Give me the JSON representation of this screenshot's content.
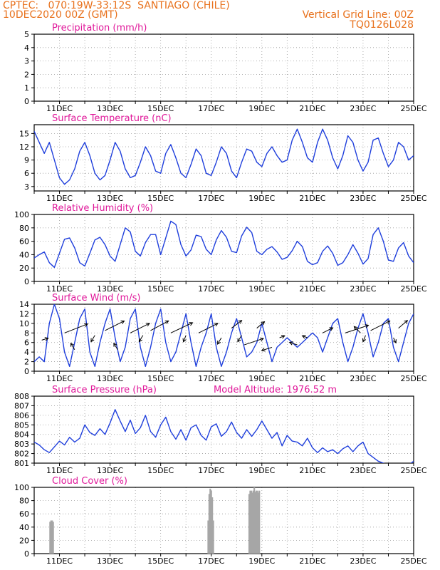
{
  "header": {
    "line1_left": "CPTEC:   070:19W-33:12S  SANTIAGO (CHILE)",
    "line2_left": "10DEC2020 00Z (GMT)",
    "line1_right": "Vertical Grid Line: 00Z",
    "line2_right": "TQ0126L028"
  },
  "colors": {
    "header": "#e8711c",
    "title": "#e0189a",
    "line": "#1f3fdc",
    "bars": "#a6a6a6",
    "arrows": "#000000",
    "grid": "#9a9a9a"
  },
  "chart_data": [
    {
      "type": "line",
      "title": "Precipitation (mm/h)",
      "ylim": [
        0,
        5
      ],
      "yticks": [
        0,
        1,
        2,
        3,
        4,
        5
      ],
      "x_range_days": [
        10,
        25
      ],
      "xticks": [
        "11DEC",
        "13DEC",
        "15DEC",
        "17DEC",
        "19DEC",
        "21DEC",
        "23DEC",
        "25DEC"
      ],
      "grid": true,
      "series": [
        {
          "x": [],
          "values": []
        }
      ]
    },
    {
      "type": "line",
      "title": "Surface Temperature (nC)",
      "ylim": [
        2,
        17
      ],
      "yticks": [
        3,
        6,
        9,
        12,
        15
      ],
      "x_range_days": [
        10,
        25
      ],
      "xticks": [
        "11DEC",
        "13DEC",
        "15DEC",
        "17DEC",
        "19DEC",
        "21DEC",
        "23DEC",
        "25DEC"
      ],
      "grid": true,
      "series": [
        {
          "x": [
            10.0,
            10.2,
            10.4,
            10.6,
            10.8,
            11.0,
            11.2,
            11.4,
            11.6,
            11.8,
            12.0,
            12.2,
            12.4,
            12.6,
            12.8,
            13.0,
            13.2,
            13.4,
            13.6,
            13.8,
            14.0,
            14.2,
            14.4,
            14.6,
            14.8,
            15.0,
            15.2,
            15.4,
            15.6,
            15.8,
            16.0,
            16.2,
            16.4,
            16.6,
            16.8,
            17.0,
            17.2,
            17.4,
            17.6,
            17.8,
            18.0,
            18.2,
            18.4,
            18.6,
            18.8,
            19.0,
            19.2,
            19.4,
            19.6,
            19.8,
            20.0,
            20.2,
            20.4,
            20.6,
            20.8,
            21.0,
            21.2,
            21.4,
            21.6,
            21.8,
            22.0,
            22.2,
            22.4,
            22.6,
            22.8,
            23.0,
            23.2,
            23.4,
            23.6,
            23.8,
            24.0,
            24.2,
            24.4,
            24.6,
            24.8,
            25.0
          ],
          "values": [
            15.5,
            13.0,
            10.5,
            13.0,
            9.0,
            5.0,
            3.5,
            4.5,
            7.0,
            11.0,
            13.0,
            10.0,
            6.0,
            4.5,
            5.5,
            9.0,
            13.0,
            11.0,
            7.0,
            5.0,
            5.5,
            8.5,
            12.0,
            10.0,
            6.5,
            6.0,
            10.5,
            12.5,
            9.5,
            6.0,
            5.0,
            8.0,
            11.5,
            10.0,
            6.0,
            5.5,
            8.5,
            12.0,
            10.5,
            6.5,
            5.0,
            8.5,
            11.5,
            11.0,
            8.5,
            7.5,
            10.5,
            12.0,
            10.0,
            8.5,
            9.0,
            13.5,
            16.0,
            13.0,
            9.5,
            8.5,
            13.0,
            16.0,
            13.5,
            9.5,
            7.0,
            10.0,
            14.5,
            13.0,
            9.0,
            6.5,
            8.5,
            13.5,
            14.0,
            10.5,
            7.5,
            9.0,
            13.0,
            12.0,
            9.0,
            10.0
          ]
        }
      ]
    },
    {
      "type": "line",
      "title": "Relative Humidity (%)",
      "ylim": [
        0,
        100
      ],
      "yticks": [
        0,
        20,
        40,
        60,
        80,
        100
      ],
      "x_range_days": [
        10,
        25
      ],
      "xticks": [
        "11DEC",
        "13DEC",
        "15DEC",
        "17DEC",
        "19DEC",
        "21DEC",
        "23DEC",
        "25DEC"
      ],
      "grid": true,
      "series": [
        {
          "x": [
            10.0,
            10.2,
            10.4,
            10.6,
            10.8,
            11.0,
            11.2,
            11.4,
            11.6,
            11.8,
            12.0,
            12.2,
            12.4,
            12.6,
            12.8,
            13.0,
            13.2,
            13.4,
            13.6,
            13.8,
            14.0,
            14.2,
            14.4,
            14.6,
            14.8,
            15.0,
            15.2,
            15.4,
            15.6,
            15.8,
            16.0,
            16.2,
            16.4,
            16.6,
            16.8,
            17.0,
            17.2,
            17.4,
            17.6,
            17.8,
            18.0,
            18.2,
            18.4,
            18.6,
            18.8,
            19.0,
            19.2,
            19.4,
            19.6,
            19.8,
            20.0,
            20.2,
            20.4,
            20.6,
            20.8,
            21.0,
            21.2,
            21.4,
            21.6,
            21.8,
            22.0,
            22.2,
            22.4,
            22.6,
            22.8,
            23.0,
            23.2,
            23.4,
            23.6,
            23.8,
            24.0,
            24.2,
            24.4,
            24.6,
            24.8,
            25.0
          ],
          "values": [
            35,
            40,
            44,
            28,
            21,
            42,
            63,
            65,
            50,
            28,
            23,
            42,
            62,
            66,
            55,
            38,
            30,
            55,
            80,
            74,
            45,
            38,
            58,
            70,
            70,
            40,
            65,
            90,
            85,
            55,
            38,
            47,
            69,
            67,
            48,
            40,
            62,
            76,
            66,
            45,
            43,
            68,
            81,
            73,
            45,
            40,
            48,
            52,
            44,
            33,
            36,
            46,
            60,
            52,
            30,
            25,
            28,
            45,
            53,
            42,
            24,
            28,
            40,
            55,
            42,
            26,
            34,
            70,
            80,
            60,
            32,
            30,
            50,
            58,
            38,
            28
          ]
        }
      ]
    },
    {
      "type": "line",
      "title": "Surface Wind (m/s)",
      "ylim": [
        0,
        14
      ],
      "yticks": [
        0,
        2,
        4,
        6,
        8,
        10,
        12,
        14
      ],
      "x_range_days": [
        10,
        25
      ],
      "xticks": [
        "11DEC",
        "13DEC",
        "15DEC",
        "17DEC",
        "19DEC",
        "21DEC",
        "23DEC",
        "25DEC"
      ],
      "grid": true,
      "series": [
        {
          "x": [
            10.0,
            10.2,
            10.4,
            10.6,
            10.8,
            11.0,
            11.2,
            11.4,
            11.6,
            11.8,
            12.0,
            12.2,
            12.4,
            12.6,
            12.8,
            13.0,
            13.2,
            13.4,
            13.6,
            13.8,
            14.0,
            14.2,
            14.4,
            14.6,
            14.8,
            15.0,
            15.2,
            15.4,
            15.6,
            15.8,
            16.0,
            16.2,
            16.4,
            16.6,
            16.8,
            17.0,
            17.2,
            17.4,
            17.6,
            17.8,
            18.0,
            18.2,
            18.4,
            18.6,
            18.8,
            19.0,
            19.2,
            19.4,
            19.6,
            19.8,
            20.0,
            20.2,
            20.4,
            20.6,
            20.8,
            21.0,
            21.2,
            21.4,
            21.6,
            21.8,
            22.0,
            22.2,
            22.4,
            22.6,
            22.8,
            23.0,
            23.2,
            23.4,
            23.6,
            23.8,
            24.0,
            24.2,
            24.4,
            24.6,
            24.8,
            25.0
          ],
          "values": [
            2.0,
            3.0,
            2.0,
            10.0,
            14.0,
            11.0,
            4.0,
            1.0,
            6.0,
            11.0,
            13.0,
            4.0,
            1.0,
            6.0,
            10.0,
            13.0,
            7.0,
            2.0,
            5.0,
            11.0,
            13.0,
            5.0,
            1.0,
            5.0,
            10.0,
            13.0,
            6.0,
            2.0,
            4.0,
            8.0,
            12.0,
            6.0,
            1.0,
            5.0,
            8.0,
            12.0,
            5.0,
            1.0,
            4.0,
            8.0,
            11.0,
            7.0,
            3.0,
            4.0,
            6.0,
            10.0,
            6.0,
            2.0,
            5.0,
            6.0,
            7.0,
            6.0,
            5.0,
            6.0,
            7.0,
            8.0,
            7.0,
            4.0,
            7.0,
            10.0,
            11.0,
            6.0,
            2.0,
            5.0,
            9.0,
            12.0,
            8.0,
            3.0,
            6.0,
            10.0,
            11.0,
            5.0,
            2.0,
            6.0,
            10.0,
            12.0
          ]
        }
      ],
      "arrows": [
        {
          "x": 10.3,
          "y": 6.5,
          "u": 0.5,
          "v": 0.3
        },
        {
          "x": 11.2,
          "y": 8.0,
          "u": 1.8,
          "v": 1.4
        },
        {
          "x": 11.6,
          "y": 4.5,
          "u": -0.3,
          "v": 1.0
        },
        {
          "x": 12.4,
          "y": 7.5,
          "u": -0.3,
          "v": -1.0
        },
        {
          "x": 12.8,
          "y": 8.5,
          "u": 1.5,
          "v": 1.5
        },
        {
          "x": 13.3,
          "y": 4.5,
          "u": -0.3,
          "v": 1.0
        },
        {
          "x": 13.8,
          "y": 8.0,
          "u": 1.5,
          "v": 1.5
        },
        {
          "x": 14.3,
          "y": 7.5,
          "u": -0.3,
          "v": -1.0
        },
        {
          "x": 14.6,
          "y": 8.5,
          "u": 1.4,
          "v": 1.5
        },
        {
          "x": 15.4,
          "y": 8.0,
          "u": 1.7,
          "v": 1.6
        },
        {
          "x": 16.0,
          "y": 7.5,
          "u": -0.2,
          "v": -1.0
        },
        {
          "x": 16.5,
          "y": 8.0,
          "u": 1.5,
          "v": 1.5
        },
        {
          "x": 17.4,
          "y": 7.0,
          "u": -0.3,
          "v": -1.0
        },
        {
          "x": 17.8,
          "y": 9.0,
          "u": 0.8,
          "v": 1.2
        },
        {
          "x": 18.2,
          "y": 7.5,
          "u": -0.3,
          "v": -1.0
        },
        {
          "x": 18.3,
          "y": 5.5,
          "u": 1.5,
          "v": 1.0
        },
        {
          "x": 18.8,
          "y": 9.0,
          "u": 0.6,
          "v": 1.0
        },
        {
          "x": 19.4,
          "y": 5.0,
          "u": -0.8,
          "v": -0.5
        },
        {
          "x": 19.7,
          "y": 7.0,
          "u": 0.4,
          "v": 0.3
        },
        {
          "x": 20.4,
          "y": 5.5,
          "u": -0.6,
          "v": 0.4
        },
        {
          "x": 20.8,
          "y": 7.0,
          "u": -0.4,
          "v": 0.3
        },
        {
          "x": 21.4,
          "y": 8.0,
          "u": 0.8,
          "v": 0.8
        },
        {
          "x": 22.3,
          "y": 8.0,
          "u": 1.8,
          "v": 1.2
        },
        {
          "x": 22.9,
          "y": 8.0,
          "u": -0.5,
          "v": 1.0
        },
        {
          "x": 23.1,
          "y": 7.5,
          "u": -0.2,
          "v": -1.0
        },
        {
          "x": 23.3,
          "y": 8.5,
          "u": 1.5,
          "v": 1.5
        },
        {
          "x": 24.2,
          "y": 7.0,
          "u": 0.2,
          "v": -0.8
        },
        {
          "x": 24.4,
          "y": 9.0,
          "u": 0.7,
          "v": 1.2
        }
      ]
    },
    {
      "type": "line",
      "title": "Surface Pressure (hPa)",
      "annotation": "Model Altitude: 1976.52 m",
      "ylim": [
        801,
        808
      ],
      "yticks": [
        801,
        802,
        803,
        804,
        805,
        806,
        807,
        808
      ],
      "x_range_days": [
        10,
        25
      ],
      "xticks": [
        "11DEC",
        "13DEC",
        "15DEC",
        "17DEC",
        "19DEC",
        "21DEC",
        "23DEC",
        "25DEC"
      ],
      "grid": true,
      "series": [
        {
          "x": [
            10.0,
            10.2,
            10.4,
            10.6,
            10.8,
            11.0,
            11.2,
            11.4,
            11.6,
            11.8,
            12.0,
            12.2,
            12.4,
            12.6,
            12.8,
            13.0,
            13.2,
            13.4,
            13.6,
            13.8,
            14.0,
            14.2,
            14.4,
            14.6,
            14.8,
            15.0,
            15.2,
            15.4,
            15.6,
            15.8,
            16.0,
            16.2,
            16.4,
            16.6,
            16.8,
            17.0,
            17.2,
            17.4,
            17.6,
            17.8,
            18.0,
            18.2,
            18.4,
            18.6,
            18.8,
            19.0,
            19.2,
            19.4,
            19.6,
            19.8,
            20.0,
            20.2,
            20.4,
            20.6,
            20.8,
            21.0,
            21.2,
            21.4,
            21.6,
            21.8,
            22.0,
            22.2,
            22.4,
            22.6,
            22.8,
            23.0,
            23.2,
            23.4,
            23.6,
            23.8,
            24.0,
            24.2,
            24.4,
            24.6,
            24.8,
            25.0
          ],
          "values": [
            803.2,
            802.9,
            802.4,
            802.1,
            802.7,
            803.3,
            802.9,
            803.7,
            803.2,
            803.6,
            805.0,
            804.2,
            803.9,
            804.6,
            804.0,
            805.2,
            806.6,
            805.4,
            804.3,
            805.5,
            804.1,
            804.7,
            806.0,
            804.3,
            803.7,
            805.0,
            805.8,
            804.3,
            803.5,
            804.5,
            803.4,
            804.7,
            805.0,
            803.9,
            803.4,
            804.8,
            805.1,
            803.8,
            804.3,
            805.3,
            804.2,
            803.6,
            804.5,
            803.8,
            804.5,
            805.4,
            804.5,
            803.6,
            804.2,
            802.8,
            803.9,
            803.3,
            803.2,
            802.8,
            803.6,
            802.6,
            802.1,
            802.6,
            802.2,
            802.4,
            802.0,
            802.5,
            802.8,
            802.2,
            802.8,
            803.2,
            802.0,
            801.6,
            801.2,
            801.0,
            800.8,
            800.9,
            800.5,
            800.7,
            800.8,
            801.2
          ]
        }
      ]
    },
    {
      "type": "bar",
      "title": "Cloud Cover (%)",
      "ylim": [
        0,
        100
      ],
      "yticks": [
        0,
        20,
        40,
        60,
        80,
        100
      ],
      "x_range_days": [
        10,
        25
      ],
      "xticks": [
        "11DEC",
        "13DEC",
        "15DEC",
        "17DEC",
        "19DEC",
        "21DEC",
        "23DEC",
        "25DEC"
      ],
      "grid": true,
      "x": [
        10.63,
        10.67,
        10.71,
        10.75,
        16.88,
        16.92,
        16.96,
        17.0,
        17.04,
        17.08,
        18.5,
        18.54,
        18.58,
        18.62,
        18.66,
        18.7,
        18.74,
        18.78,
        18.82,
        18.86,
        18.9
      ],
      "values": [
        48,
        50,
        50,
        48,
        50,
        90,
        98,
        95,
        85,
        50,
        90,
        95,
        95,
        92,
        95,
        100,
        93,
        95,
        95,
        92,
        95
      ]
    }
  ]
}
